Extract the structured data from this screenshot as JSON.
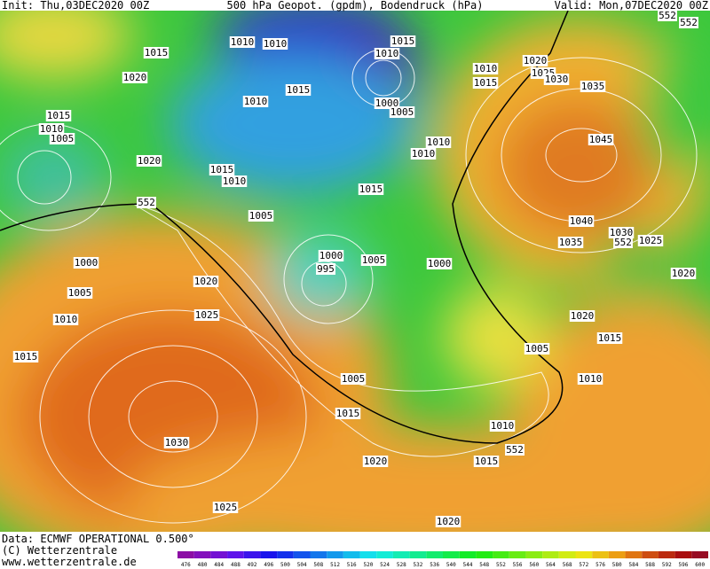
{
  "header": {
    "init": "Init: Thu,03DEC2020 00Z",
    "title": "500 hPa Geopot. (gpdm), Bodendruck (hPa)",
    "valid": "Valid: Mon,07DEC2020 00Z"
  },
  "isobar_labels": [
    1010,
    1010,
    1015,
    1010,
    1015,
    1020,
    1015,
    1010,
    1000,
    1005,
    1010,
    1015,
    1020,
    1025,
    1030,
    1035,
    1015,
    1010,
    1005,
    1010,
    1010,
    1045,
    1020,
    1015,
    1010,
    1015,
    1005,
    1040,
    1030,
    1025,
    1035,
    1000,
    995,
    1005,
    1000,
    1000,
    1020,
    1020,
    1005,
    1020,
    1025,
    1010,
    1015,
    1005,
    1015,
    1005,
    1010,
    1015,
    1010,
    1030,
    1020,
    1015,
    1025,
    1020
  ],
  "contour_labels_552": [
    552,
    552,
    552,
    552,
    552
  ],
  "footer": {
    "data": "Data: ECMWF OPERATIONAL 0.500°",
    "copyright": "(C) Wetterzentrale",
    "url": "www.wetterzentrale.de"
  },
  "colorbar": {
    "ticks": [
      476,
      480,
      484,
      488,
      492,
      496,
      500,
      504,
      508,
      512,
      516,
      520,
      524,
      528,
      532,
      536,
      540,
      544,
      548,
      552,
      556,
      560,
      564,
      568,
      572,
      576,
      580,
      584,
      588,
      592,
      596,
      600
    ]
  }
}
